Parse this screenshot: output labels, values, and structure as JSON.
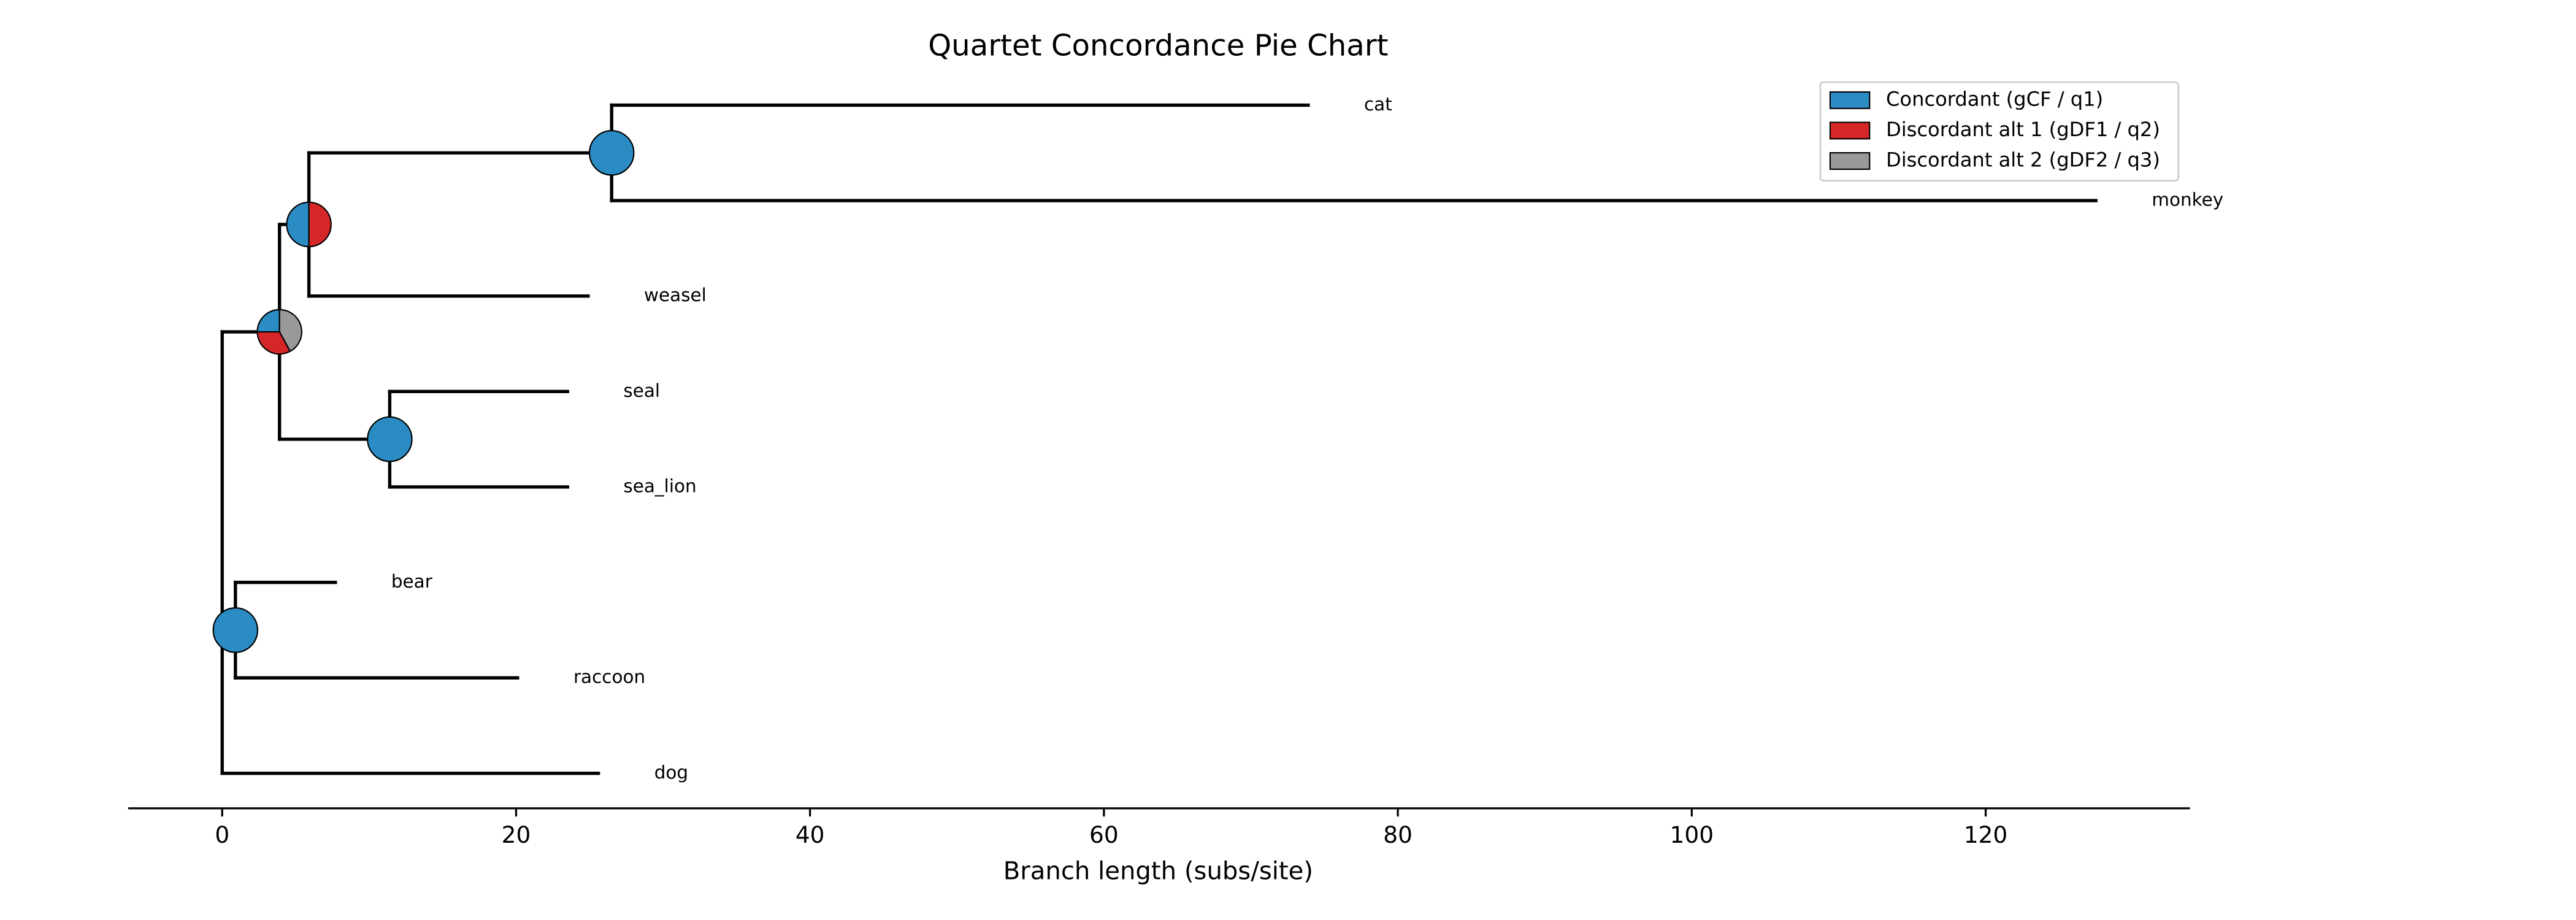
{
  "chart_data": {
    "type": "tree",
    "title": "Quartet Concordance Pie Chart",
    "xlabel": "Branch length (subs/site)",
    "xlim": [
      -6.4,
      133.9
    ],
    "xticks": [
      0,
      20,
      40,
      60,
      80,
      100,
      120
    ],
    "pie_series": [
      {
        "name": "Concordant (gCF / q1)",
        "color": "#2b8cc4"
      },
      {
        "name": "Discordant alt 1 (gDF1 / q2)",
        "color": "#d62728"
      },
      {
        "name": "Discordant alt 2 (gDF2 / q3)",
        "color": "#999999"
      }
    ],
    "tree": {
      "x": 0,
      "children": [
        {
          "x": 3.9,
          "values": [
            0.25,
            0.33,
            0.42
          ],
          "children": [
            {
              "x": 5.9,
              "values": [
                0.5,
                0.5,
                0
              ],
              "children": [
                {
                  "x": 26.5,
                  "values": [
                    1,
                    0,
                    0
                  ],
                  "children": [
                    {
                      "label": "cat",
                      "x": 73.9
                    },
                    {
                      "label": "monkey",
                      "x": 127.5
                    }
                  ]
                },
                {
                  "label": "weasel",
                  "x": 24.9
                }
              ]
            },
            {
              "x": 11.4,
              "values": [
                1,
                0,
                0
              ],
              "children": [
                {
                  "label": "seal",
                  "x": 23.5
                },
                {
                  "label": "sea_lion",
                  "x": 23.5
                }
              ]
            }
          ]
        },
        {
          "x": 0.9,
          "values": [
            1,
            0,
            0
          ],
          "children": [
            {
              "label": "bear",
              "x": 7.7
            },
            {
              "label": "raccoon",
              "x": 20.1
            }
          ]
        },
        {
          "label": "dog",
          "x": 25.6
        }
      ]
    }
  }
}
